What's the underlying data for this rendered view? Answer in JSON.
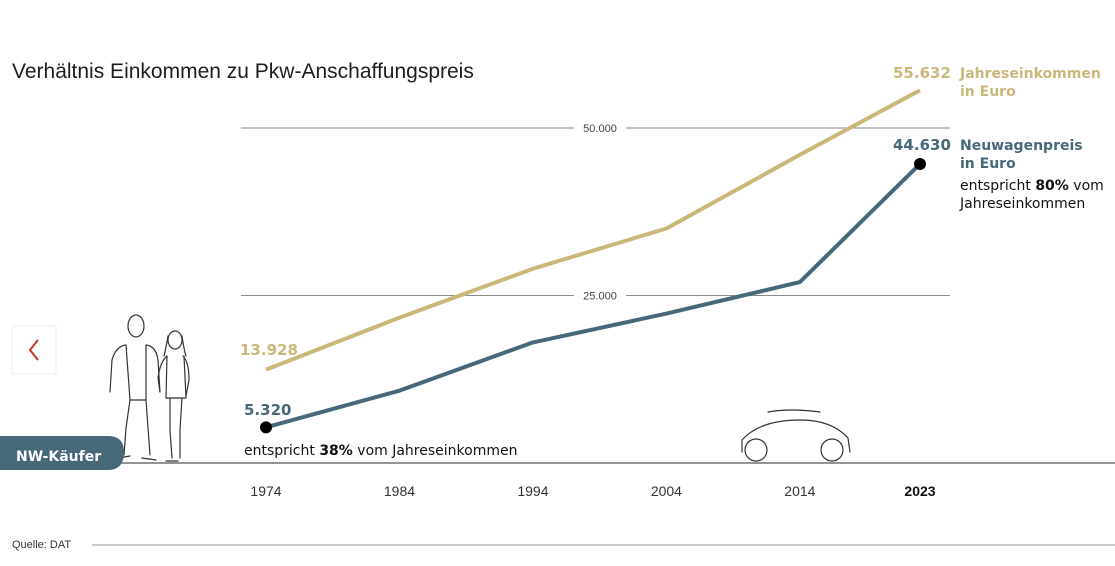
{
  "title": "Verhältnis Einkommen zu Pkw-Anschaffungspreis",
  "source": "Quelle: DAT",
  "badge": "NW-Käufer",
  "nav": {
    "prev_icon": "chevron-left-icon"
  },
  "income_label": {
    "line1": "Jahreseinkommen",
    "line2": "in Euro"
  },
  "price_label": {
    "line1": "Neuwagenpreis",
    "line2": "in Euro"
  },
  "note_start": {
    "prefix": "entspricht ",
    "pct": "38%",
    "suffix": " vom Jahreseinkommen"
  },
  "note_end": {
    "prefix": "entspricht ",
    "pct": "80%",
    "suffix": " vom",
    "line2": "Jahreseinkommen"
  },
  "colors": {
    "income": "#c9b87a",
    "price": "#466878",
    "badge": "#466878",
    "accent": "#c0392b"
  },
  "chart_data": {
    "type": "line",
    "x": [
      1974,
      1984,
      1994,
      2004,
      2014,
      2023
    ],
    "x_tick_labels": [
      "1974",
      "1984",
      "1994",
      "2004",
      "2014",
      "2023"
    ],
    "highlight_tick": "2023",
    "y_gridlines": [
      25000,
      50000
    ],
    "y_gridline_labels": [
      "25.000",
      "50.000"
    ],
    "ylim": [
      0,
      60000
    ],
    "series": [
      {
        "key": "income",
        "name": "Jahreseinkommen in Euro",
        "values": [
          13928,
          21700,
          29000,
          35000,
          46000,
          55632
        ],
        "start_label": "13.928",
        "end_label": "55.632"
      },
      {
        "key": "price",
        "name": "Neuwagenpreis in Euro",
        "values": [
          5320,
          10800,
          18000,
          22300,
          27000,
          44630
        ],
        "start_label": "5.320",
        "end_label": "44.630"
      }
    ]
  }
}
